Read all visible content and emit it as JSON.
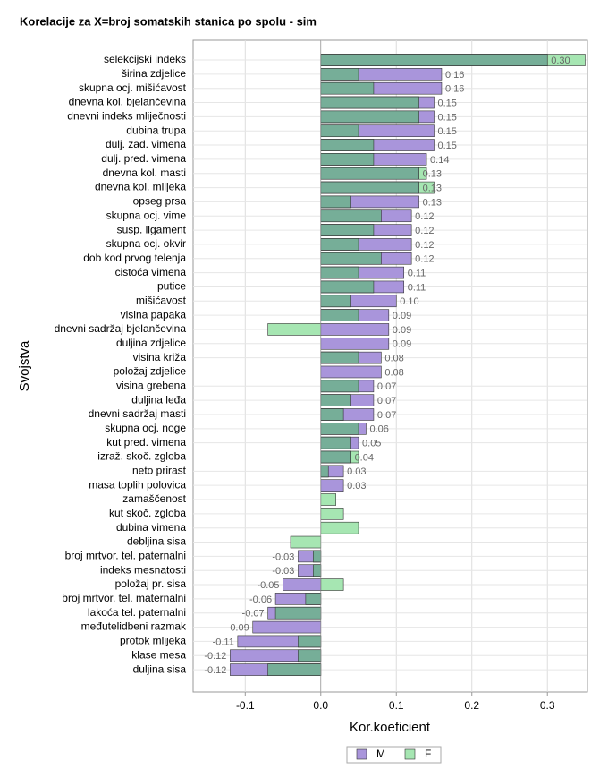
{
  "chart_data": {
    "type": "overlap-barh",
    "title": "Korelacije za X=broj somatskih stanica po spolu - sim",
    "xlabel": "Kor.koeficient",
    "ylabel": "Svojstva",
    "categories": [
      "selekcijski indeks",
      "širina zdjelice",
      "skupna ocj. mišićavost",
      "dnevna kol. bjelančevina",
      "dnevni indeks mliječnosti",
      "dubina trupa",
      "dulj. zad. vimena",
      "dulj. pred. vimena",
      "dnevna kol. masti",
      "dnevna kol. mlijeka",
      "opseg prsa",
      "skupna ocj. vime",
      "susp. ligament",
      "skupna ocj. okvir",
      "dob kod prvog telenja",
      "cistoća vimena",
      "putice",
      "mišićavost",
      "visina papaka",
      "dnevni sadržaj bjelančevina",
      "duljina zdjelice",
      "visina križa",
      "položaj zdjelice",
      "visina grebena",
      "duljina leđa",
      "dnevni sadržaj masti",
      "skupna ocj. noge",
      "kut pred. vimena",
      "izraž. skoč. zgloba",
      "neto prirast",
      "masa toplih polovica",
      "zamaščenost",
      "kut skoč. zgloba",
      "dubina vimena",
      "debljina sisa",
      "broj mrtvor. tel. paternalni",
      "indeks mesnatosti",
      "položaj pr. sisa",
      "broj mrtvor. tel. maternalni",
      "lakoća tel. paternalni",
      "međutelidbeni razmak",
      "protok mlijeka",
      "klase mesa",
      "duljina sisa"
    ],
    "series": [
      {
        "name": "M",
        "color": "#a995db",
        "values": [
          0.3,
          0.16,
          0.16,
          0.15,
          0.15,
          0.15,
          0.15,
          0.14,
          0.13,
          0.13,
          0.13,
          0.12,
          0.12,
          0.12,
          0.12,
          0.11,
          0.11,
          0.1,
          0.09,
          0.09,
          0.09,
          0.08,
          0.08,
          0.07,
          0.07,
          0.07,
          0.06,
          0.05,
          0.04,
          0.03,
          0.03,
          null,
          null,
          null,
          null,
          -0.03,
          -0.03,
          -0.05,
          -0.06,
          -0.07,
          -0.09,
          -0.11,
          -0.12,
          -0.12
        ],
        "value_labels": [
          "0.30",
          "0.16",
          "0.16",
          "0.15",
          "0.15",
          "0.15",
          "0.15",
          "0.14",
          "0.13",
          "0.13",
          "0.13",
          "0.12",
          "0.12",
          "0.12",
          "0.12",
          "0.11",
          "0.11",
          "0.10",
          "0.09",
          "0.09",
          "0.09",
          "0.08",
          "0.08",
          "0.07",
          "0.07",
          "0.07",
          "0.06",
          "0.05",
          "0.04",
          "0.03",
          "0.03",
          null,
          null,
          null,
          null,
          "-0.03",
          "-0.03",
          "-0.05",
          "-0.06",
          "-0.07",
          "-0.09",
          "-0.11",
          "-0.12",
          "-0.12"
        ]
      },
      {
        "name": "F",
        "color": "#a6e6b2",
        "values": [
          0.35,
          0.05,
          0.07,
          0.13,
          0.13,
          0.05,
          0.07,
          0.07,
          0.14,
          0.15,
          0.04,
          0.08,
          0.07,
          0.05,
          0.08,
          0.05,
          0.07,
          0.04,
          0.05,
          -0.07,
          null,
          0.05,
          null,
          0.05,
          0.04,
          0.03,
          0.05,
          0.04,
          0.05,
          0.01,
          null,
          0.02,
          0.03,
          0.05,
          -0.04,
          -0.01,
          -0.01,
          0.03,
          -0.02,
          -0.06,
          null,
          -0.03,
          -0.03,
          -0.07
        ]
      }
    ],
    "overlap_color": "#76ae98",
    "xlim": [
      -0.169,
      0.353
    ],
    "xticks": [
      -0.1,
      {
        "value": 0,
        "label": "0.0"
      },
      0.1,
      0.2,
      0.3
    ],
    "grid": true
  }
}
